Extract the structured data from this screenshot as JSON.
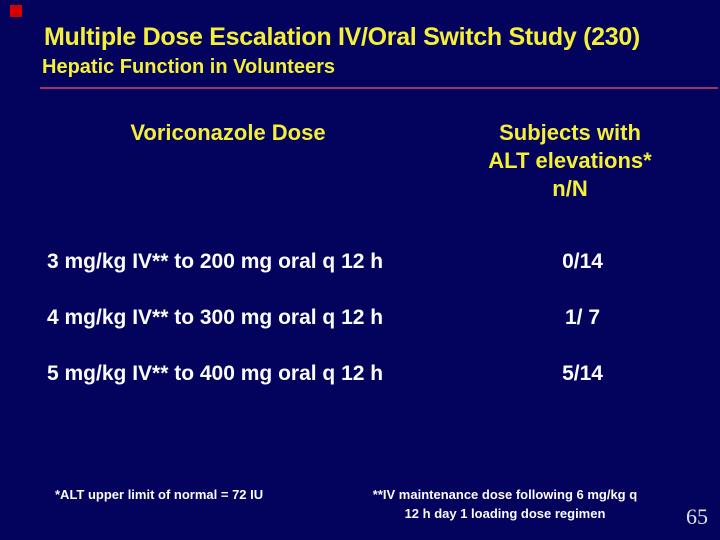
{
  "slide": {
    "title": "Multiple Dose Escalation IV/Oral Switch Study (230)",
    "subtitle": "Hepatic Function in Volunteers",
    "page_number": "65"
  },
  "colors": {
    "background": "#03035e",
    "title_yellow": "#f4ef38",
    "body_white": "#fcfcfc",
    "divider_plum": "#9c3566",
    "marker_red": "#d40000",
    "page_num_gray": "#e0e0e0"
  },
  "table": {
    "col1_header": "Voriconazole Dose",
    "col2_header_lines": [
      "Subjects with",
      "ALT elevations*",
      "n/N"
    ],
    "rows": [
      {
        "dose": "3 mg/kg IV** to 200 mg oral q 12 h",
        "value": "0/14"
      },
      {
        "dose": "4 mg/kg IV** to 300 mg oral q 12 h",
        "value": "1/ 7"
      },
      {
        "dose": "5 mg/kg IV** to 400 mg oral q 12 h",
        "value": "5/14"
      }
    ]
  },
  "footnotes": {
    "left": "*ALT upper limit of normal = 72 IU",
    "right_line1": "**IV maintenance dose following 6 mg/kg q",
    "right_line2": "12 h day 1 loading dose regimen"
  }
}
